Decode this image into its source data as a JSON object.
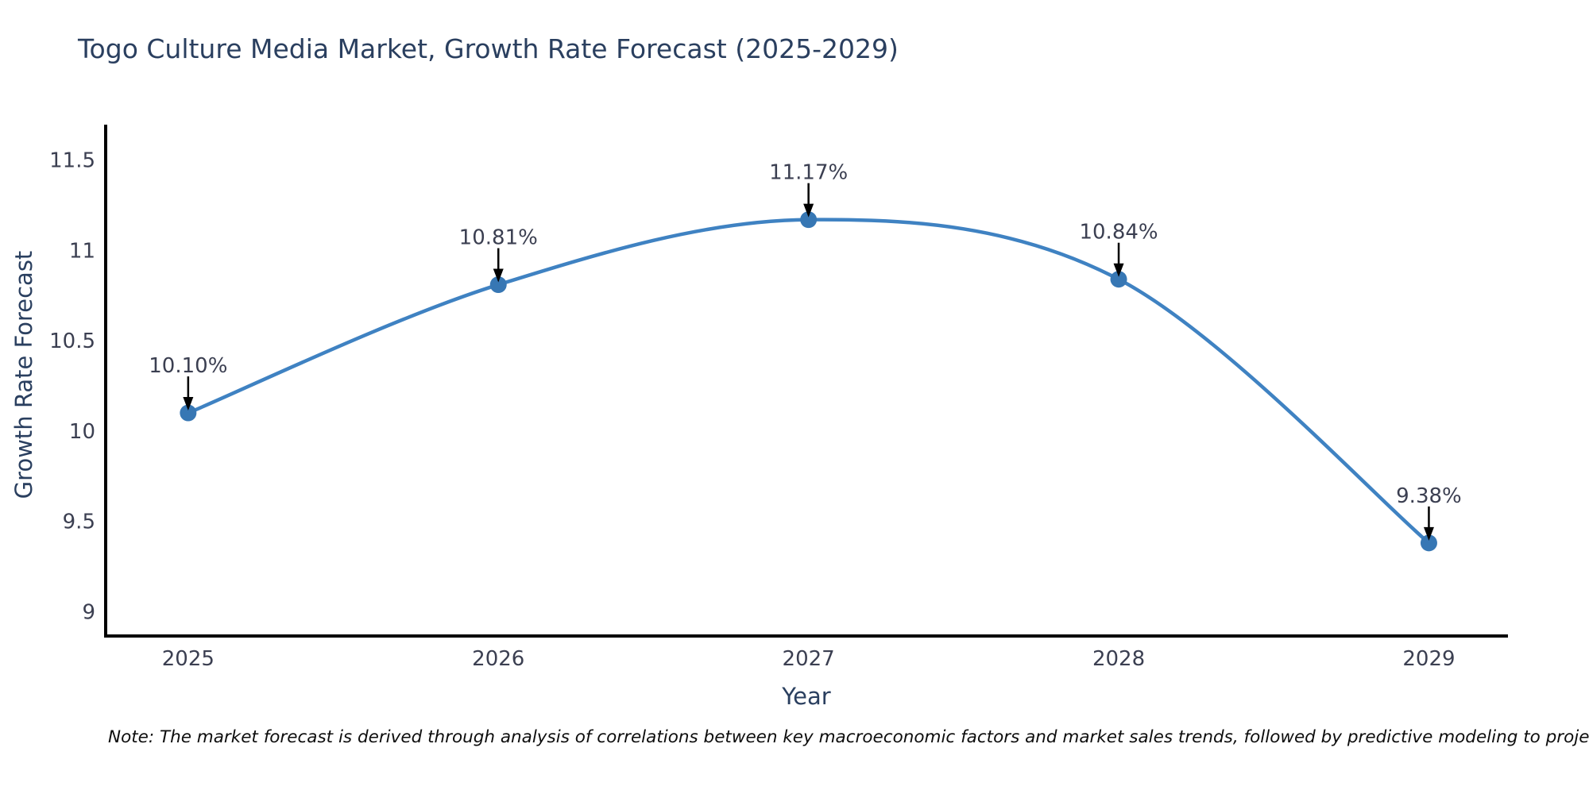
{
  "note": "Note: The market forecast is derived through analysis of correlations between key macroeconomic factors and market sales trends, followed by predictive modeling to project future sal",
  "chart_data": {
    "type": "line",
    "title": "Togo Culture Media Market, Growth Rate Forecast (2025-2029)",
    "xlabel": "Year",
    "ylabel": "Growth Rate Forecast",
    "x": [
      2025,
      2026,
      2027,
      2028,
      2029
    ],
    "series": [
      {
        "name": "Growth Rate Forecast",
        "values": [
          10.1,
          10.81,
          11.17,
          10.84,
          9.38
        ]
      }
    ],
    "point_labels": [
      "10.10%",
      "10.81%",
      "11.17%",
      "10.84%",
      "9.38%"
    ],
    "x_ticks": [
      "2025",
      "2026",
      "2027",
      "2028",
      "2029"
    ],
    "y_ticks": [
      "9",
      "9.5",
      "10",
      "10.5",
      "11",
      "11.5"
    ],
    "xlim": [
      2024.734,
      2029.255
    ],
    "ylim": [
      8.865,
      11.696
    ],
    "grid": false,
    "legend": false,
    "line_shape": "spline",
    "annotation_arrows": true,
    "colors": {
      "line": "#3f82c2",
      "marker": "#3777b4",
      "axis": "#000000",
      "arrow": "#000000",
      "text": "#2a3f5f",
      "tick_text": "#3b3f51"
    }
  }
}
